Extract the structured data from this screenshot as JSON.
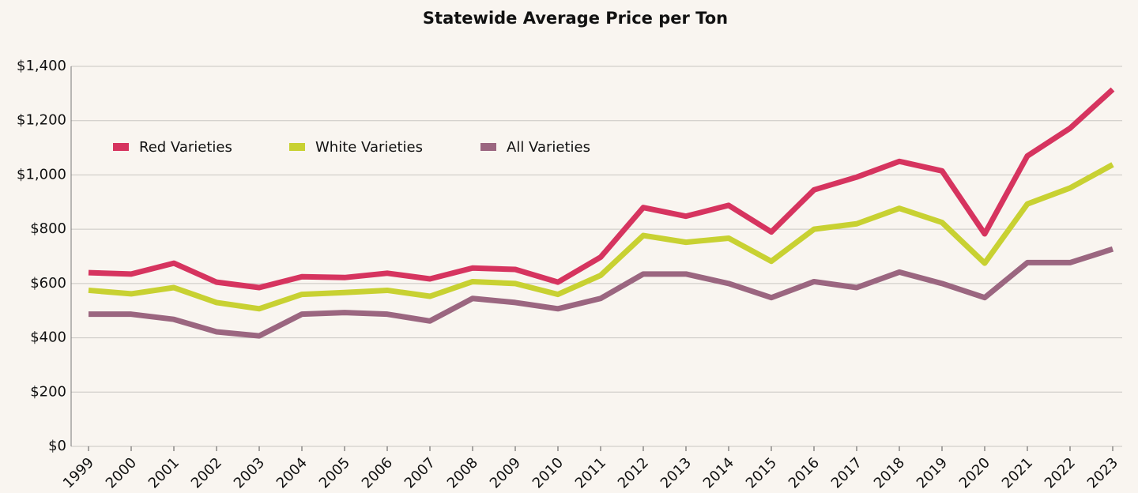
{
  "chart_data": {
    "type": "line",
    "title": "Statewide Average Price per Ton",
    "categories": [
      "1999",
      "2000",
      "2001",
      "2002",
      "2003",
      "2004",
      "2005",
      "2006",
      "2007",
      "2008",
      "2009",
      "2010",
      "2011",
      "2012",
      "2013",
      "2014",
      "2015",
      "2016",
      "2017",
      "2018",
      "2019",
      "2020",
      "2021",
      "2022",
      "2023"
    ],
    "series": [
      {
        "name": "Red Varieties",
        "color": "#d6345f",
        "values": [
          640,
          635,
          675,
          605,
          585,
          625,
          622,
          638,
          617,
          657,
          652,
          605,
          697,
          880,
          848,
          888,
          790,
          945,
          992,
          1050,
          1015,
          783,
          1070,
          1172,
          1315
        ]
      },
      {
        "name": "White Varieties",
        "color": "#c8d132",
        "values": [
          575,
          562,
          585,
          530,
          507,
          560,
          567,
          575,
          553,
          607,
          600,
          560,
          630,
          777,
          752,
          767,
          682,
          800,
          820,
          877,
          825,
          675,
          893,
          952,
          1038
        ]
      },
      {
        "name": "All Varieties",
        "color": "#9b6680",
        "values": [
          487,
          487,
          468,
          422,
          407,
          487,
          493,
          487,
          462,
          545,
          530,
          507,
          545,
          635,
          635,
          600,
          548,
          607,
          585,
          642,
          600,
          548,
          677,
          677,
          727
        ]
      }
    ],
    "ylim": [
      0,
      1400
    ],
    "yticks": [
      {
        "value": 0,
        "label": "$0"
      },
      {
        "value": 200,
        "label": "$200"
      },
      {
        "value": 400,
        "label": "$400"
      },
      {
        "value": 600,
        "label": "$600"
      },
      {
        "value": 800,
        "label": "$800"
      },
      {
        "value": 1000,
        "label": "$1,000"
      },
      {
        "value": 1200,
        "label": "$1,200"
      },
      {
        "value": 1400,
        "label": "$1,400"
      }
    ],
    "grid": true,
    "legend": "top-left"
  }
}
